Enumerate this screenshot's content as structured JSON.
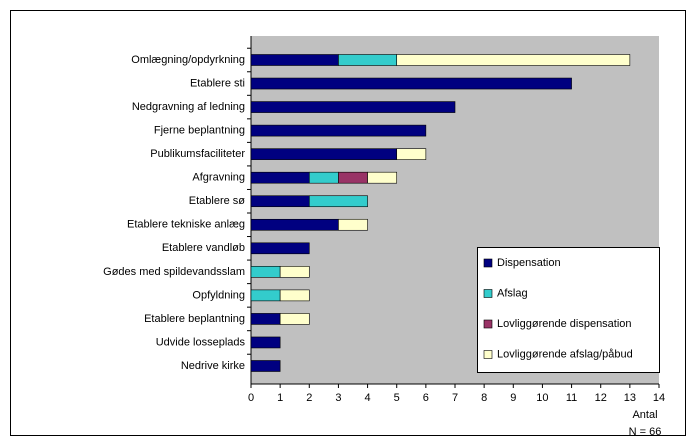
{
  "chart_data": {
    "type": "stacked_barh",
    "categories": [
      "Omlægning/opdyrkning",
      "Etablere sti",
      "Nedgravning af ledning",
      "Fjerne beplantning",
      "Publikumsfaciliteter",
      "Afgravning",
      "Etablere sø",
      "Etablere tekniske anlæg",
      "Etablere vandløb",
      "Gødes med spildevandsslam",
      "Opfyldning",
      "Etablere beplantning",
      "Udvide losseplads",
      "Nedrive kirke"
    ],
    "series": [
      {
        "name": "Dispensation",
        "color": "#000080",
        "values": [
          3,
          11,
          7,
          6,
          5,
          2,
          2,
          3,
          2,
          0,
          0,
          1,
          1,
          1
        ]
      },
      {
        "name": "Afslag",
        "color": "#33cccc",
        "values": [
          2,
          0,
          0,
          0,
          0,
          1,
          2,
          0,
          0,
          1,
          1,
          0,
          0,
          0
        ]
      },
      {
        "name": "Lovliggørende dispensation",
        "color": "#993366",
        "values": [
          0,
          0,
          0,
          0,
          0,
          1,
          0,
          0,
          0,
          0,
          0,
          0,
          0,
          0
        ]
      },
      {
        "name": "Lovliggørende afslag/påbud",
        "color": "#ffffcc",
        "values": [
          8,
          0,
          0,
          0,
          1,
          1,
          0,
          1,
          0,
          1,
          1,
          1,
          0,
          0
        ]
      }
    ],
    "xlabel": "Antal",
    "annotation": "N = 66",
    "xlim": [
      0,
      14
    ],
    "xticks": [
      0,
      1,
      2,
      3,
      4,
      5,
      6,
      7,
      8,
      9,
      10,
      11,
      12,
      13,
      14
    ],
    "legend": "lower right"
  }
}
